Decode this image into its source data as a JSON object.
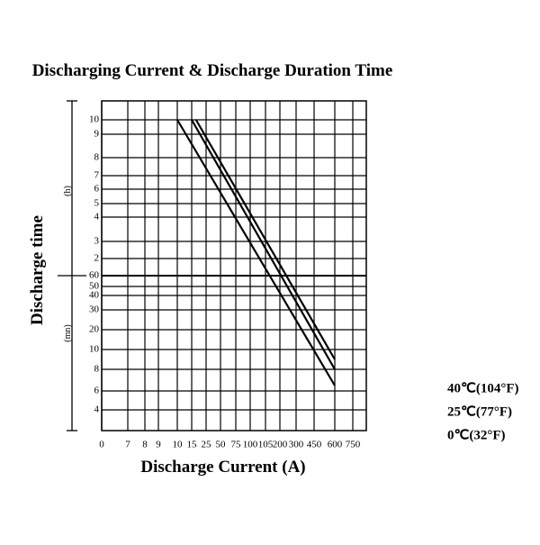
{
  "chart_data": {
    "type": "line",
    "title": "Discharging Current & Discharge Duration Time",
    "x_label": "Discharge  Current (A)",
    "y_label": "Discharge time",
    "y_unit_hours": "(h)",
    "y_unit_minutes": "(mn)",
    "xticks": [
      0,
      7,
      8,
      9,
      10,
      15,
      25,
      50,
      75,
      100,
      105,
      200,
      300,
      450,
      600,
      750
    ],
    "yticks": [
      {
        "value": 600,
        "label": "10"
      },
      {
        "value": 540,
        "label": "9"
      },
      {
        "value": 480,
        "label": "8"
      },
      {
        "value": 420,
        "label": "7"
      },
      {
        "value": 360,
        "label": "6"
      },
      {
        "value": 300,
        "label": "5"
      },
      {
        "value": 240,
        "label": "4"
      },
      {
        "value": 180,
        "label": "3"
      },
      {
        "value": 120,
        "label": "2"
      },
      60,
      50,
      40,
      30,
      20,
      10,
      8,
      6,
      4
    ],
    "grid": true,
    "series": [
      {
        "name": "40℃(104°F)",
        "color": "#000000",
        "x": [
          18,
          600
        ],
        "values": [
          600,
          9
        ]
      },
      {
        "name": "25℃(77°F)",
        "color": "#000000",
        "x": [
          15,
          600
        ],
        "values": [
          600,
          8
        ]
      },
      {
        "name": "0℃(32°F)",
        "color": "#000000",
        "x": [
          10,
          600
        ],
        "values": [
          600,
          6.5
        ]
      }
    ]
  }
}
